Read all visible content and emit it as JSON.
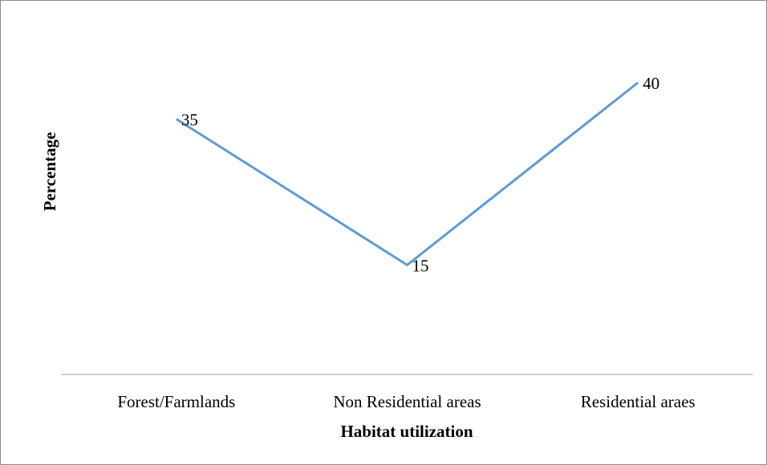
{
  "chart_data": {
    "type": "line",
    "categories": [
      "Forest/Farmlands",
      "Non Residential areas",
      "Residential araes"
    ],
    "series": [
      {
        "values": [
          35,
          15,
          40
        ]
      }
    ],
    "xlabel": "Habitat utilization",
    "ylabel": "Percentage",
    "ylim": [
      0,
      50
    ],
    "grid": false,
    "legend": "none",
    "line_color": "#5B9BD5",
    "axis_color": "#A6A6A6"
  }
}
